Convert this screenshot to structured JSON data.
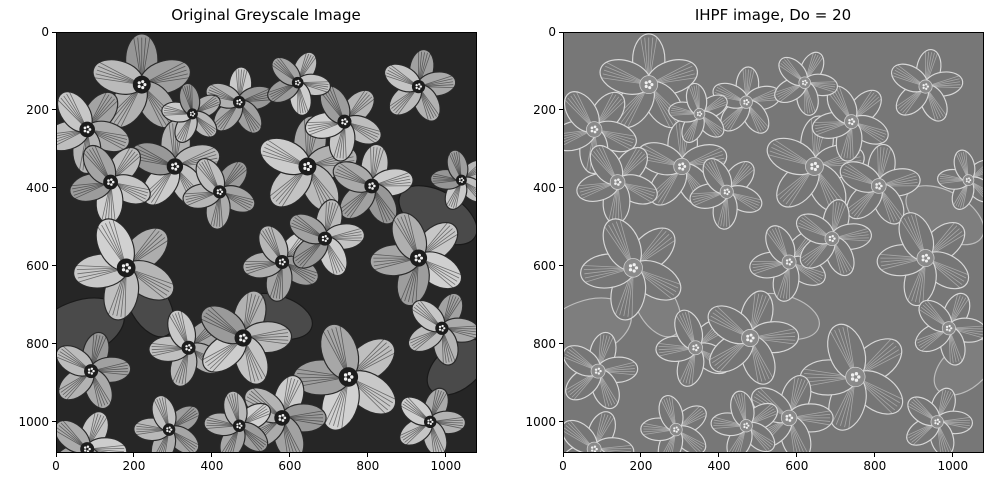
{
  "panels": [
    {
      "title": "Original Greyscale Image",
      "image": "black-and-white photo of oxalis flowers",
      "tone": "high-contrast",
      "x_ticks": [
        "0",
        "200",
        "400",
        "600",
        "800",
        "1000"
      ],
      "y_ticks": [
        "0",
        "200",
        "400",
        "600",
        "800",
        "1000"
      ],
      "extent": [
        0,
        1080
      ]
    },
    {
      "title": "IHPF image, Do = 20",
      "image": "high-pass filtered version of the same flower photo showing mostly edges",
      "tone": "edge-map",
      "x_ticks": [
        "0",
        "200",
        "400",
        "600",
        "800",
        "1000"
      ],
      "y_ticks": [
        "0",
        "200",
        "400",
        "600",
        "800",
        "1000"
      ],
      "extent": [
        0,
        1080
      ]
    }
  ]
}
